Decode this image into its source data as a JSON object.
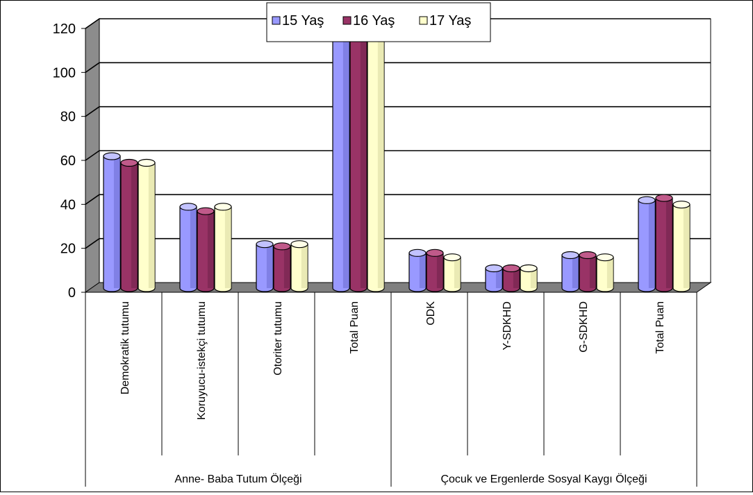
{
  "chart_data": {
    "type": "bar",
    "categories": [
      "Demokratik tutumu",
      "Koruyucu-istekçi tutumu",
      "Otoriter tutumu",
      "Total Puan",
      "ODK",
      "Y-SDKHD",
      "G-SDKHD",
      "Total Puan"
    ],
    "groups": [
      {
        "label": "Anne- Baba Tutum Ölçeği",
        "span": [
          0,
          3
        ]
      },
      {
        "label": "Çocuk ve Ergenlerde Sosyal Kaygı Ölçeği",
        "span": [
          4,
          7
        ]
      }
    ],
    "series": [
      {
        "name": "15 Yaş",
        "values": [
          60,
          37,
          20,
          122,
          16,
          9,
          15,
          40
        ]
      },
      {
        "name": "16 Yaş",
        "values": [
          57,
          35,
          19,
          120,
          16,
          9,
          15,
          41
        ]
      },
      {
        "name": "17 Yaş",
        "values": [
          57,
          37,
          20,
          120,
          14,
          9,
          14,
          38
        ]
      }
    ],
    "yticks": [
      "0",
      "20",
      "40",
      "60",
      "80",
      "100",
      "120"
    ],
    "ylim": [
      0,
      120
    ],
    "grid": true,
    "legend_position": "top-center"
  },
  "colors": {
    "series": [
      "#9999ff",
      "#993366",
      "#ffffcc"
    ],
    "series_dark": [
      "#6b6bd0",
      "#6e2148",
      "#d8d8a0"
    ],
    "series_top": [
      "#c2c2ff",
      "#c05a8a",
      "#ffffe8"
    ],
    "wall": "#ffffff",
    "side_wall": "#8c8c8c",
    "floor": "#7f7f7f"
  }
}
